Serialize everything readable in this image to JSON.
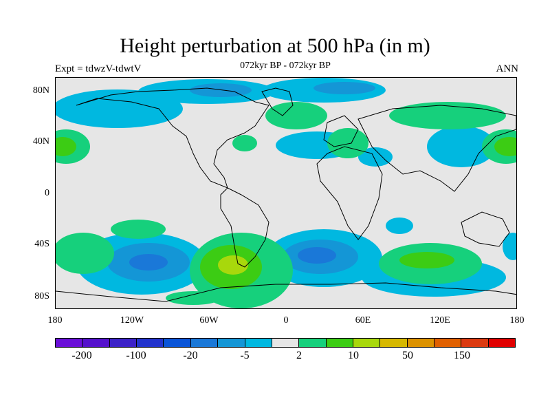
{
  "title": "Height perturbation at 500 hPa (in m)",
  "subtitle_left": "Expt = tdwzV-tdwtV",
  "subtitle_center": "072kyr BP - 072kyr BP",
  "subtitle_right": "ANN",
  "lat_labels": [
    "80N",
    "40N",
    "0",
    "40S",
    "80S"
  ],
  "lon_labels": [
    "180",
    "120W",
    "60W",
    "0",
    "60E",
    "120E",
    "180"
  ],
  "colorbar": {
    "colors": [
      "#6a0fd8",
      "#5511cc",
      "#3c22c8",
      "#2233cc",
      "#0a55d8",
      "#1a78d8",
      "#1496d6",
      "#00b8e0",
      "#e6e6e6",
      "#16d07c",
      "#3ccc14",
      "#a8d80c",
      "#d6b800",
      "#dc9200",
      "#e06000",
      "#dc3a10",
      "#e00000"
    ],
    "labels": [
      "-200",
      "-100",
      "-20",
      "-5",
      "2",
      "10",
      "50",
      "150"
    ]
  },
  "map_colors": {
    "background": "#e6e6e6",
    "neg_light": "#00b8e0",
    "neg_mid": "#1496d6",
    "neg_dark": "#1a78d8",
    "pos_light": "#16d07c",
    "pos_mid": "#3ccc14",
    "pos_strong": "#a8d80c"
  }
}
